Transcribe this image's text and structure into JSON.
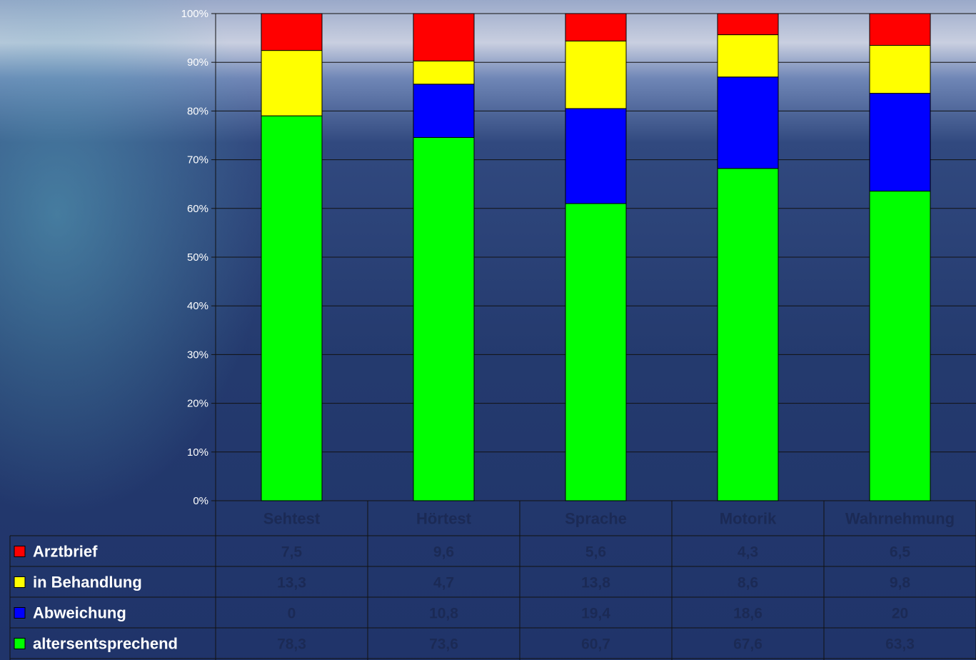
{
  "chart_data": {
    "type": "bar",
    "stacked": "percent",
    "categories": [
      "Sehtest",
      "Hörtest",
      "Sprache",
      "Motorik",
      "Wahrnehmung"
    ],
    "series": [
      {
        "name": "altersentsprechend",
        "color": "#00ff00",
        "values": [
          78.3,
          73.6,
          60.7,
          67.6,
          63.3
        ],
        "labels": [
          "78,3",
          "73,6",
          "60,7",
          "67,6",
          "63,3"
        ]
      },
      {
        "name": "Abweichung",
        "color": "#0000ff",
        "values": [
          0,
          10.8,
          19.4,
          18.6,
          20
        ],
        "labels": [
          "0",
          "10,8",
          "19,4",
          "18,6",
          "20"
        ]
      },
      {
        "name": "in Behandlung",
        "color": "#ffff00",
        "values": [
          13.3,
          4.7,
          13.8,
          8.6,
          9.8
        ],
        "labels": [
          "13,3",
          "4,7",
          "13,8",
          "8,6",
          "9,8"
        ]
      },
      {
        "name": "Arztbrief",
        "color": "#ff0000",
        "values": [
          7.5,
          9.6,
          5.6,
          4.3,
          6.5
        ],
        "labels": [
          "7,5",
          "9,6",
          "5,6",
          "4,3",
          "6,5"
        ]
      }
    ],
    "yticks": [
      "0%",
      "10%",
      "20%",
      "30%",
      "40%",
      "50%",
      "60%",
      "70%",
      "80%",
      "90%",
      "100%"
    ],
    "ylim": [
      0,
      100
    ],
    "grid": true,
    "legend": "data-table",
    "table_row_order": [
      "Arztbrief",
      "in Behandlung",
      "Abweichung",
      "altersentsprechend"
    ]
  }
}
